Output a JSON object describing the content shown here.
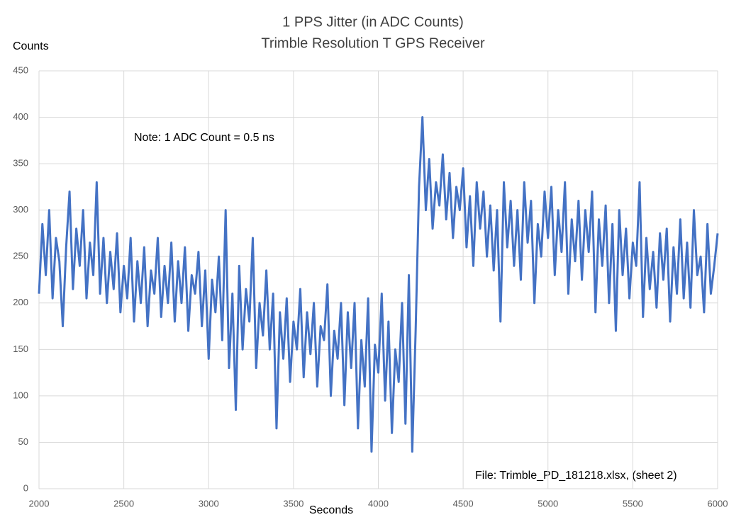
{
  "chart_data": {
    "type": "line",
    "title": "1 PPS Jitter (in ADC Counts)",
    "subtitle": "Trimble Resolution T GPS Receiver",
    "y_label": "Counts",
    "x_label": "Seconds",
    "annotations": [
      "Note:  1 ADC Count = 0.5 ns",
      "File: Trimble_PD_181218.xlsx, (sheet 2)"
    ],
    "xlim": [
      2000,
      6000
    ],
    "ylim": [
      0,
      450
    ],
    "xticks": [
      2000,
      2500,
      3000,
      3500,
      4000,
      4500,
      5000,
      5500,
      6000
    ],
    "yticks": [
      0,
      50,
      100,
      150,
      200,
      250,
      300,
      350,
      400,
      450
    ],
    "grid": true,
    "x": [
      2000,
      2020,
      2040,
      2060,
      2080,
      2100,
      2120,
      2140,
      2160,
      2180,
      2200,
      2220,
      2240,
      2260,
      2280,
      2300,
      2320,
      2340,
      2360,
      2380,
      2400,
      2420,
      2440,
      2460,
      2480,
      2500,
      2520,
      2540,
      2560,
      2580,
      2600,
      2620,
      2640,
      2660,
      2680,
      2700,
      2720,
      2740,
      2760,
      2780,
      2800,
      2820,
      2840,
      2860,
      2880,
      2900,
      2920,
      2940,
      2960,
      2980,
      3000,
      3020,
      3040,
      3060,
      3080,
      3100,
      3120,
      3140,
      3160,
      3180,
      3200,
      3220,
      3240,
      3260,
      3280,
      3300,
      3320,
      3340,
      3360,
      3380,
      3400,
      3420,
      3440,
      3460,
      3480,
      3500,
      3520,
      3540,
      3560,
      3580,
      3600,
      3620,
      3640,
      3660,
      3680,
      3700,
      3720,
      3740,
      3760,
      3780,
      3800,
      3820,
      3840,
      3860,
      3880,
      3900,
      3920,
      3940,
      3960,
      3980,
      4000,
      4020,
      4040,
      4060,
      4080,
      4100,
      4120,
      4140,
      4160,
      4180,
      4200,
      4220,
      4240,
      4260,
      4280,
      4300,
      4320,
      4340,
      4360,
      4380,
      4400,
      4420,
      4440,
      4460,
      4480,
      4500,
      4520,
      4540,
      4560,
      4580,
      4600,
      4620,
      4640,
      4660,
      4680,
      4700,
      4720,
      4740,
      4760,
      4780,
      4800,
      4820,
      4840,
      4860,
      4880,
      4900,
      4920,
      4940,
      4960,
      4980,
      5000,
      5020,
      5040,
      5060,
      5080,
      5100,
      5120,
      5140,
      5160,
      5180,
      5200,
      5220,
      5240,
      5260,
      5280,
      5300,
      5320,
      5340,
      5360,
      5380,
      5400,
      5420,
      5440,
      5460,
      5480,
      5500,
      5520,
      5540,
      5560,
      5580,
      5600,
      5620,
      5640,
      5660,
      5680,
      5700,
      5720,
      5740,
      5760,
      5780,
      5800,
      5820,
      5840,
      5860,
      5880,
      5900,
      5920,
      5940,
      5960,
      5980,
      6000
    ],
    "series": [
      {
        "color": "#4472c4",
        "values": [
          210,
          285,
          230,
          300,
          205,
          270,
          245,
          175,
          260,
          320,
          215,
          280,
          240,
          300,
          205,
          265,
          230,
          330,
          210,
          270,
          200,
          255,
          215,
          275,
          190,
          240,
          205,
          270,
          180,
          245,
          200,
          260,
          175,
          235,
          210,
          270,
          185,
          240,
          200,
          265,
          180,
          245,
          200,
          260,
          170,
          230,
          210,
          255,
          175,
          235,
          140,
          225,
          190,
          250,
          160,
          300,
          130,
          210,
          85,
          240,
          150,
          215,
          180,
          270,
          130,
          200,
          165,
          235,
          150,
          210,
          65,
          190,
          140,
          205,
          115,
          180,
          150,
          215,
          120,
          190,
          145,
          200,
          110,
          175,
          160,
          220,
          100,
          170,
          140,
          200,
          90,
          190,
          130,
          200,
          65,
          160,
          110,
          205,
          40,
          155,
          125,
          210,
          95,
          180,
          60,
          150,
          115,
          200,
          70,
          230,
          40,
          170,
          325,
          400,
          300,
          355,
          280,
          330,
          305,
          360,
          290,
          340,
          270,
          325,
          300,
          345,
          260,
          315,
          240,
          330,
          280,
          320,
          250,
          305,
          235,
          300,
          180,
          330,
          260,
          310,
          240,
          300,
          225,
          330,
          265,
          310,
          200,
          285,
          250,
          320,
          270,
          325,
          230,
          300,
          255,
          330,
          210,
          290,
          245,
          310,
          225,
          300,
          255,
          320,
          190,
          290,
          240,
          305,
          200,
          285,
          170,
          300,
          230,
          280,
          205,
          265,
          240,
          330,
          185,
          270,
          215,
          255,
          195,
          275,
          225,
          280,
          180,
          260,
          210,
          290,
          205,
          265,
          195,
          300,
          230,
          250,
          190,
          285,
          210,
          240,
          275
        ]
      }
    ]
  }
}
